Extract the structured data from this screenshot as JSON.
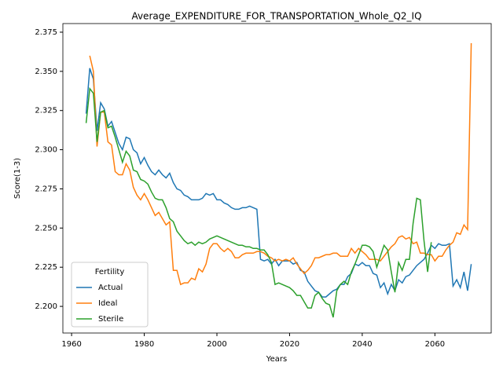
{
  "chart_data": {
    "type": "line",
    "title": "Average_EXPENDITURE_FOR_TRANSPORTATION_Whole_Q2_IQ",
    "x_label": "Years",
    "y_label": "Score(1-3)",
    "legend_title": "Fertility",
    "legend": "lower left",
    "x": [
      1964,
      1965,
      1966,
      1967,
      1968,
      1969,
      1970,
      1971,
      1972,
      1973,
      1974,
      1975,
      1976,
      1977,
      1978,
      1979,
      1980,
      1981,
      1982,
      1983,
      1984,
      1985,
      1986,
      1987,
      1988,
      1989,
      1990,
      1991,
      1992,
      1993,
      1994,
      1995,
      1996,
      1997,
      1998,
      1999,
      2000,
      2001,
      2002,
      2003,
      2004,
      2005,
      2006,
      2007,
      2008,
      2009,
      2010,
      2011,
      2012,
      2013,
      2014,
      2015,
      2016,
      2017,
      2018,
      2019,
      2020,
      2021,
      2022,
      2023,
      2024,
      2025,
      2026,
      2027,
      2028,
      2029,
      2030,
      2031,
      2032,
      2033,
      2034,
      2035,
      2036,
      2037,
      2038,
      2039,
      2040,
      2041,
      2042,
      2043,
      2044,
      2045,
      2046,
      2047,
      2048,
      2049,
      2050,
      2051,
      2052,
      2053,
      2054,
      2055,
      2056,
      2057,
      2058,
      2059,
      2060,
      2061,
      2062,
      2063,
      2064,
      2065,
      2066,
      2067,
      2068,
      2069,
      2070
    ],
    "series": [
      {
        "name": "Actual",
        "color": "#1f77b4",
        "values": [
          2.323,
          2.352,
          2.345,
          2.312,
          2.33,
          2.326,
          2.315,
          2.318,
          2.311,
          2.304,
          2.3,
          2.308,
          2.307,
          2.3,
          2.298,
          2.291,
          2.295,
          2.29,
          2.286,
          2.284,
          2.287,
          2.284,
          2.282,
          2.285,
          2.279,
          2.275,
          2.274,
          2.271,
          2.27,
          2.268,
          2.268,
          2.268,
          2.269,
          2.272,
          2.271,
          2.272,
          2.268,
          2.268,
          2.266,
          2.265,
          2.263,
          2.262,
          2.262,
          2.263,
          2.263,
          2.264,
          2.263,
          2.262,
          2.23,
          2.229,
          2.23,
          2.227,
          2.23,
          2.226,
          2.229,
          2.229,
          2.229,
          2.227,
          2.228,
          2.223,
          2.222,
          2.216,
          2.213,
          2.21,
          2.209,
          2.206,
          2.206,
          2.208,
          2.21,
          2.211,
          2.214,
          2.214,
          2.219,
          2.221,
          2.227,
          2.226,
          2.228,
          2.226,
          2.226,
          2.221,
          2.22,
          2.212,
          2.215,
          2.208,
          2.214,
          2.21,
          2.217,
          2.215,
          2.219,
          2.22,
          2.223,
          2.226,
          2.228,
          2.23,
          2.234,
          2.239,
          2.237,
          2.24,
          2.239,
          2.239,
          2.24,
          2.213,
          2.217,
          2.212,
          2.222,
          2.21,
          2.227
        ]
      },
      {
        "name": "Ideal",
        "color": "#ff7f0e",
        "values": [
          null,
          2.36,
          2.35,
          2.302,
          2.324,
          2.324,
          2.305,
          2.303,
          2.286,
          2.284,
          2.284,
          2.291,
          2.287,
          2.276,
          2.271,
          2.268,
          2.272,
          2.268,
          2.263,
          2.258,
          2.26,
          2.256,
          2.252,
          2.254,
          2.223,
          2.223,
          2.214,
          2.215,
          2.215,
          2.218,
          2.217,
          2.224,
          2.222,
          2.227,
          2.237,
          2.24,
          2.24,
          2.237,
          2.235,
          2.237,
          2.235,
          2.231,
          2.231,
          2.233,
          2.234,
          2.234,
          2.234,
          2.235,
          2.235,
          2.234,
          2.232,
          2.231,
          2.229,
          2.23,
          2.229,
          2.23,
          2.229,
          2.231,
          2.227,
          2.224,
          2.221,
          2.223,
          2.226,
          2.231,
          2.231,
          2.232,
          2.233,
          2.233,
          2.234,
          2.234,
          2.232,
          2.232,
          2.232,
          2.237,
          2.234,
          2.237,
          2.235,
          2.233,
          2.23,
          2.23,
          2.23,
          2.229,
          2.232,
          2.235,
          2.238,
          2.24,
          2.244,
          2.245,
          2.243,
          2.244,
          2.24,
          2.241,
          2.234,
          2.234,
          2.233,
          2.233,
          2.229,
          2.232,
          2.232,
          2.236,
          2.239,
          2.241,
          2.247,
          2.246,
          2.252,
          2.249,
          2.368
        ]
      },
      {
        "name": "Sterile",
        "color": "#2ca02c",
        "values": [
          2.317,
          2.339,
          2.336,
          2.305,
          2.324,
          2.325,
          2.314,
          2.315,
          2.308,
          2.3,
          2.292,
          2.299,
          2.296,
          2.287,
          2.286,
          2.281,
          2.28,
          2.278,
          2.273,
          2.269,
          2.268,
          2.268,
          2.263,
          2.256,
          2.254,
          2.248,
          2.245,
          2.242,
          2.24,
          2.241,
          2.239,
          2.241,
          2.24,
          2.241,
          2.243,
          2.244,
          2.245,
          2.244,
          2.243,
          2.242,
          2.241,
          2.24,
          2.239,
          2.239,
          2.238,
          2.238,
          2.237,
          2.237,
          2.236,
          2.236,
          2.233,
          2.228,
          2.214,
          2.215,
          2.214,
          2.213,
          2.212,
          2.21,
          2.207,
          2.207,
          2.203,
          2.199,
          2.199,
          2.207,
          2.209,
          2.205,
          2.202,
          2.201,
          2.193,
          2.21,
          2.214,
          2.216,
          2.214,
          2.222,
          2.227,
          2.233,
          2.239,
          2.239,
          2.238,
          2.235,
          2.225,
          2.232,
          2.239,
          2.236,
          2.222,
          2.209,
          2.228,
          2.223,
          2.23,
          2.23,
          2.253,
          2.269,
          2.268,
          2.242,
          2.222,
          2.241,
          null,
          null,
          null,
          null,
          null,
          null,
          null,
          null,
          null,
          null,
          null
        ]
      }
    ],
    "xlim": [
      1957.6,
      2075.5
    ],
    "xticks": [
      1960,
      1980,
      2000,
      2020,
      2040,
      2060
    ],
    "ylim": [
      2.183,
      2.3805
    ],
    "yticks": [
      {
        "value": 2.2,
        "label": "2.200"
      },
      2.225,
      {
        "value": 2.25,
        "label": "2.250"
      },
      2.275,
      {
        "value": 2.3,
        "label": "2.300"
      },
      2.325,
      {
        "value": 2.35,
        "label": "2.350"
      },
      2.375
    ]
  }
}
